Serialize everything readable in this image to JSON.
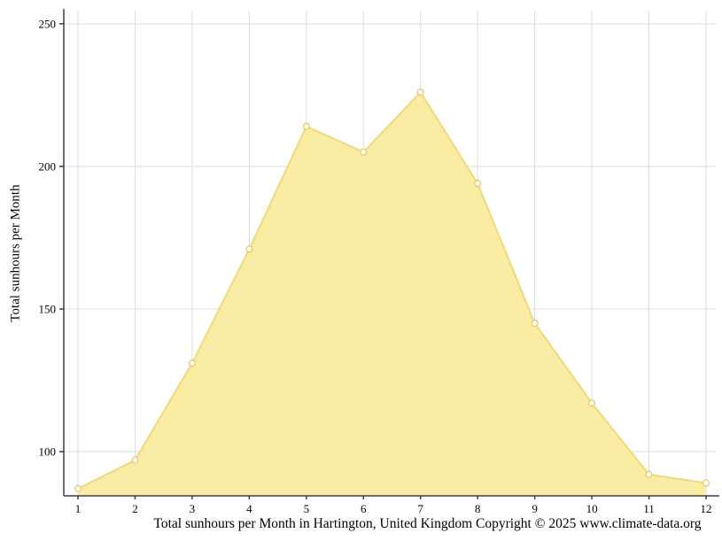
{
  "chart_data": {
    "type": "area",
    "title": "",
    "x": [
      1,
      2,
      3,
      4,
      5,
      6,
      7,
      8,
      9,
      10,
      11,
      12
    ],
    "values": [
      87,
      97,
      131,
      171,
      214,
      205,
      226,
      194,
      145,
      117,
      92,
      89
    ],
    "xlabel": "Total sunhours per Month in Hartington, United Kingdom Copyright © 2025 www.climate-data.org",
    "ylabel": "Total sunhours per Month",
    "ylim": [
      84.5,
      254.6
    ],
    "yticks": [
      100,
      150,
      200,
      250
    ],
    "xticks": [
      1,
      2,
      3,
      4,
      5,
      6,
      7,
      8,
      9,
      10,
      11,
      12
    ],
    "grid": true,
    "legend": "none",
    "colors": {
      "area_fill": "#FAECA3",
      "line": "#EFD97E",
      "marker_fill": "#FFFFFF",
      "marker_stroke": "#E3CB6A",
      "grid": "#DCDCDC",
      "axis": "#3B3B50",
      "text": "#000000"
    }
  }
}
